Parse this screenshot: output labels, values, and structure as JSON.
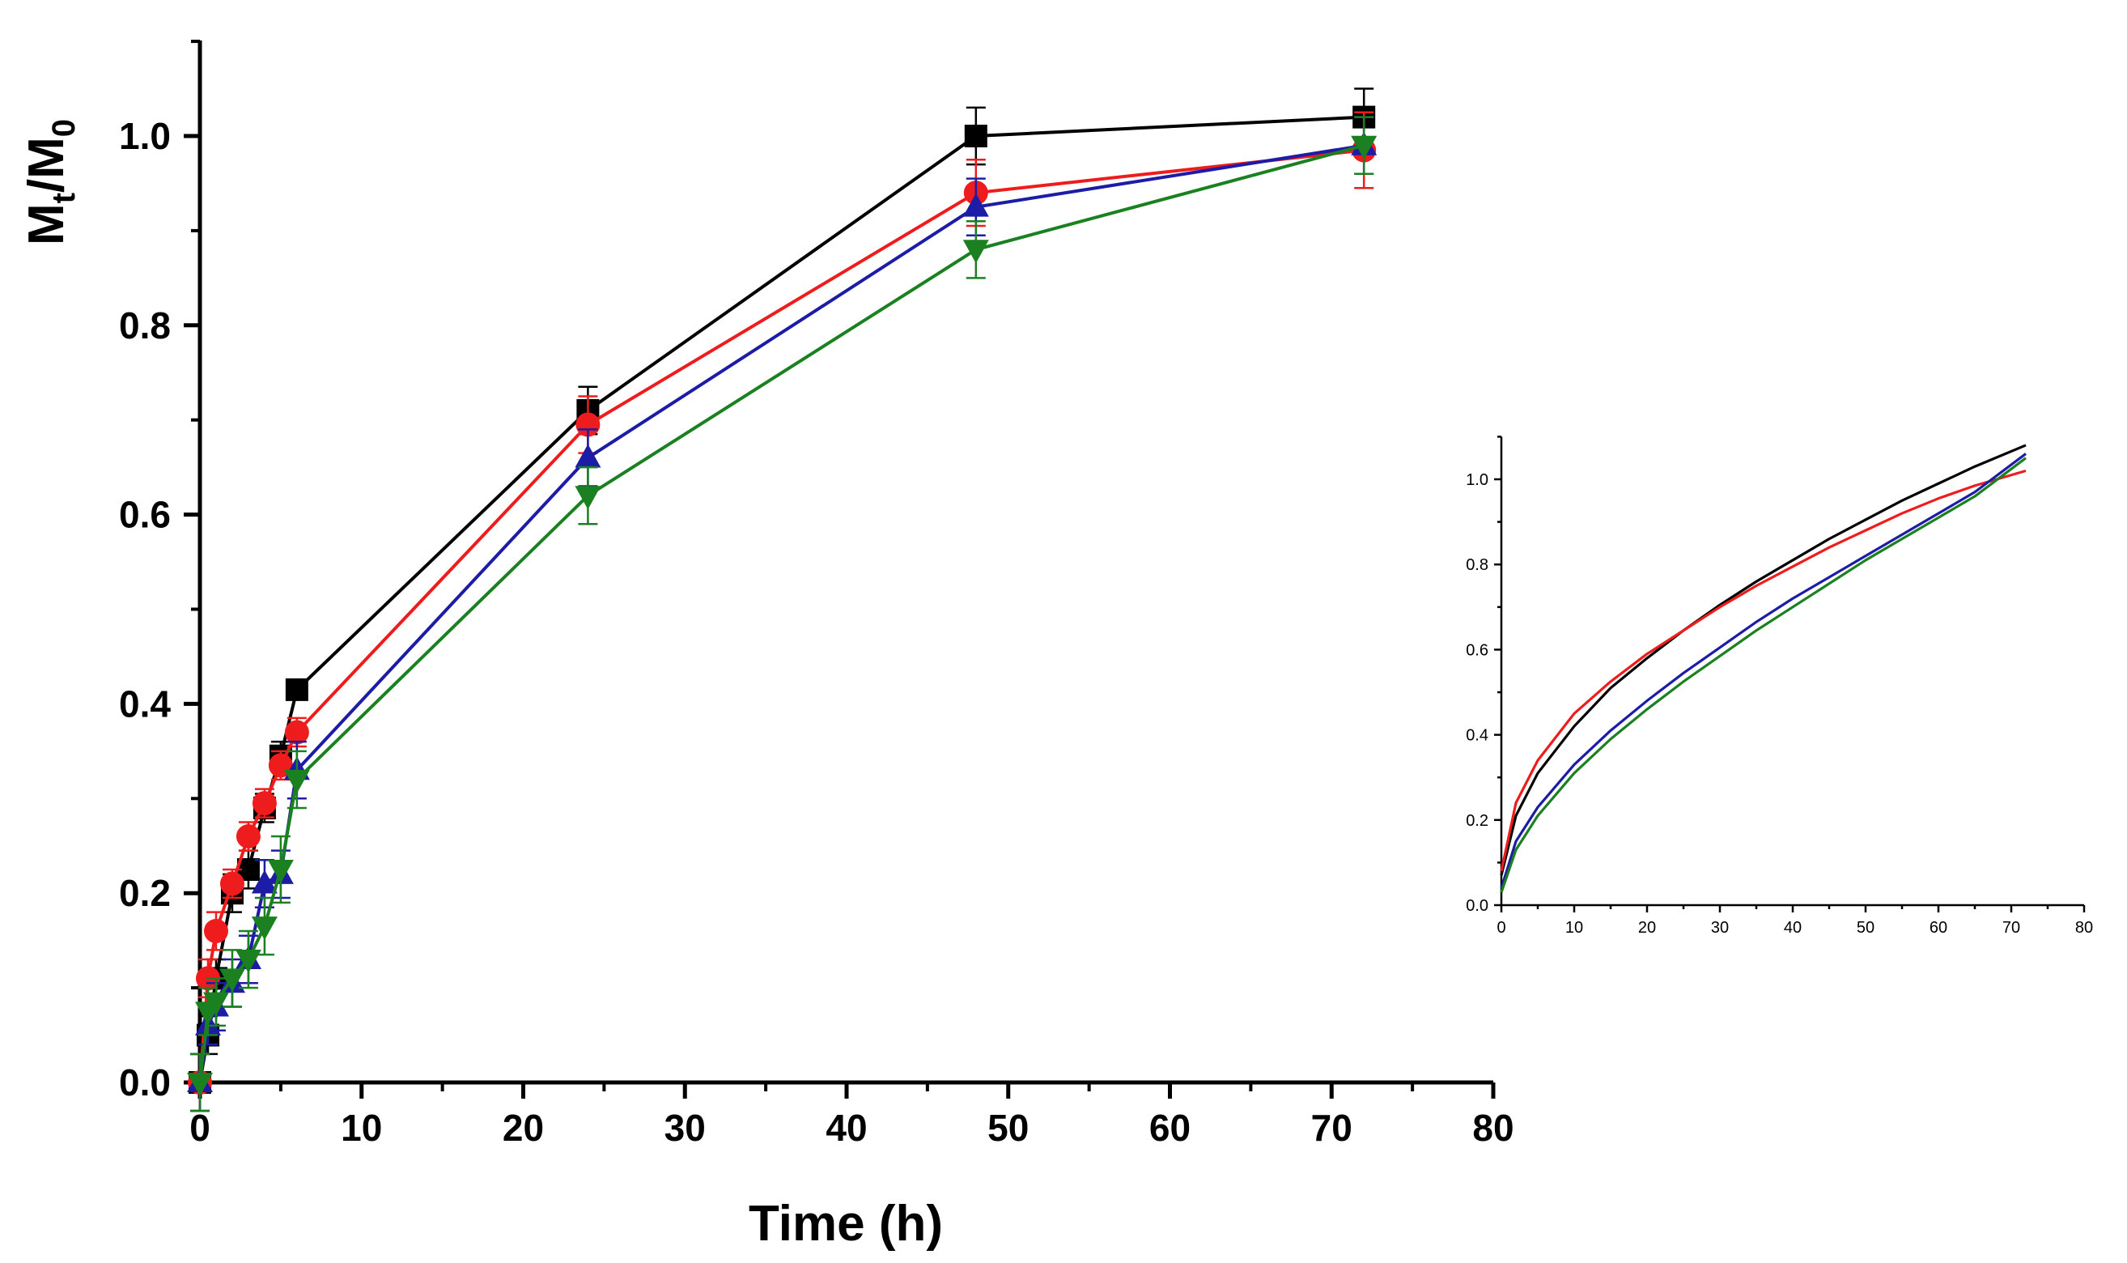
{
  "chart_data": [
    {
      "type": "line",
      "title": "",
      "xlabel": "Time (h)",
      "ylabel_main": "M",
      "ylabel_sub1": "t",
      "ylabel_slash": "/M",
      "ylabel_sub2": "0",
      "xlim": [
        0,
        80
      ],
      "ylim": [
        0,
        1.1
      ],
      "xticks": [
        "0",
        "10",
        "20",
        "30",
        "40",
        "50",
        "60",
        "70",
        "80"
      ],
      "yticks": [
        "0.0",
        "0.2",
        "0.4",
        "0.6",
        "0.8",
        "1.0"
      ],
      "grid": false,
      "legend": "none",
      "series": [
        {
          "color": "#000000",
          "marker": "square",
          "x": [
            0,
            0.5,
            1,
            2,
            3,
            4,
            5,
            6,
            24,
            48,
            72
          ],
          "y": [
            0.0,
            0.05,
            0.11,
            0.2,
            0.225,
            0.29,
            0.345,
            0.415,
            0.71,
            1.0,
            1.02
          ],
          "error": [
            0.03,
            0.02,
            0.02,
            0.02,
            0.02,
            0.015,
            0.015,
            0.01,
            0.025,
            0.03,
            0.03
          ]
        },
        {
          "color": "#ee1c1c",
          "marker": "circle",
          "x": [
            0,
            0.5,
            1,
            2,
            3,
            4,
            5,
            6,
            24,
            48,
            72
          ],
          "y": [
            0.0,
            0.11,
            0.16,
            0.21,
            0.26,
            0.295,
            0.335,
            0.37,
            0.695,
            0.94,
            0.985
          ],
          "error": [
            0.03,
            0.02,
            0.02,
            0.015,
            0.015,
            0.015,
            0.015,
            0.015,
            0.03,
            0.035,
            0.04
          ]
        },
        {
          "color": "#1c1ca6",
          "marker": "triangle-up",
          "x": [
            0,
            0.5,
            1,
            2,
            3,
            4,
            5,
            6,
            24,
            48,
            72
          ],
          "y": [
            0.0,
            0.06,
            0.08,
            0.105,
            0.13,
            0.21,
            0.22,
            0.33,
            0.66,
            0.925,
            0.99
          ],
          "error": [
            0.03,
            0.02,
            0.025,
            0.025,
            0.025,
            0.025,
            0.025,
            0.03,
            0.03,
            0.03,
            0.03
          ]
        },
        {
          "color": "#1a8020",
          "marker": "triangle-down",
          "x": [
            0,
            0.5,
            1,
            2,
            3,
            4,
            5,
            6,
            24,
            48,
            72
          ],
          "y": [
            0.0,
            0.075,
            0.085,
            0.11,
            0.13,
            0.165,
            0.225,
            0.32,
            0.62,
            0.88,
            0.99
          ],
          "error": [
            0.03,
            0.025,
            0.025,
            0.03,
            0.03,
            0.03,
            0.035,
            0.03,
            0.03,
            0.03,
            0.03
          ]
        }
      ]
    },
    {
      "type": "line",
      "title": "",
      "xlabel": "",
      "ylabel": "",
      "xlim": [
        0,
        80
      ],
      "ylim": [
        0,
        1.1
      ],
      "xticks": [
        "0",
        "10",
        "20",
        "30",
        "40",
        "50",
        "60",
        "70",
        "80"
      ],
      "yticks": [
        "0.0",
        "0.2",
        "0.4",
        "0.6",
        "0.8",
        "1.0"
      ],
      "grid": false,
      "legend": "none",
      "series": [
        {
          "color": "#000000",
          "x": [
            0,
            2,
            5,
            10,
            15,
            20,
            25,
            30,
            35,
            40,
            45,
            50,
            55,
            60,
            65,
            72
          ],
          "y": [
            0.07,
            0.21,
            0.31,
            0.42,
            0.51,
            0.58,
            0.645,
            0.705,
            0.76,
            0.81,
            0.86,
            0.905,
            0.95,
            0.99,
            1.03,
            1.08
          ]
        },
        {
          "color": "#ee1c1c",
          "x": [
            0,
            2,
            5,
            10,
            15,
            20,
            25,
            30,
            35,
            40,
            45,
            50,
            55,
            60,
            65,
            72
          ],
          "y": [
            0.08,
            0.24,
            0.34,
            0.45,
            0.525,
            0.59,
            0.645,
            0.7,
            0.75,
            0.795,
            0.84,
            0.88,
            0.92,
            0.955,
            0.985,
            1.02
          ]
        },
        {
          "color": "#1c1ca6",
          "x": [
            0,
            2,
            5,
            10,
            15,
            20,
            25,
            30,
            35,
            40,
            45,
            50,
            55,
            60,
            65,
            72
          ],
          "y": [
            0.04,
            0.15,
            0.23,
            0.33,
            0.41,
            0.48,
            0.545,
            0.605,
            0.665,
            0.72,
            0.77,
            0.82,
            0.87,
            0.92,
            0.97,
            1.06
          ]
        },
        {
          "color": "#1a8020",
          "x": [
            0,
            2,
            5,
            10,
            15,
            20,
            25,
            30,
            35,
            40,
            45,
            50,
            55,
            60,
            65,
            72
          ],
          "y": [
            0.03,
            0.13,
            0.21,
            0.31,
            0.39,
            0.46,
            0.525,
            0.585,
            0.645,
            0.7,
            0.755,
            0.81,
            0.86,
            0.91,
            0.96,
            1.05
          ]
        }
      ]
    }
  ]
}
